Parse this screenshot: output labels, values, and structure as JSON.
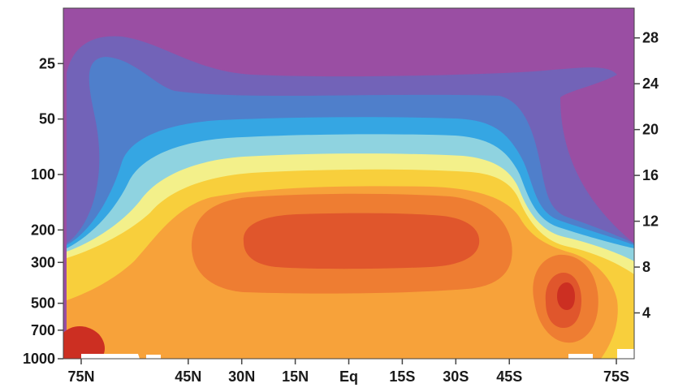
{
  "chart_data": {
    "type": "heatmap",
    "title": "",
    "xlabel": "",
    "ylabel": "",
    "y2label": "",
    "x_ticks": [
      "75N",
      "45N",
      "30N",
      "15N",
      "Eq",
      "15S",
      "30S",
      "45S",
      "75S"
    ],
    "x_tick_lats": [
      75,
      45,
      30,
      15,
      0,
      -15,
      -30,
      -45,
      -75
    ],
    "y_ticks": [
      "25",
      "50",
      "100",
      "200",
      "300",
      "500",
      "700",
      "1000"
    ],
    "y_tick_values": [
      25,
      50,
      100,
      200,
      300,
      500,
      700,
      1000
    ],
    "y_scale": "log (pressure, inverted)",
    "y2_ticks": [
      "28",
      "24",
      "20",
      "16",
      "12",
      "8",
      "4"
    ],
    "y2_tick_values": [
      28,
      24,
      20,
      16,
      12,
      8,
      4
    ],
    "y2_scale": "linear",
    "colors": {
      "background": "#9a4ea3",
      "band_1": "#7263b8",
      "band_2": "#4f7fcb",
      "band_3": "#35a6e3",
      "band_4": "#8fd3e0",
      "band_5": "#f3f08a",
      "band_6": "#f8cf3c",
      "band_7": "#f7a23a",
      "band_8": "#ee7d32",
      "band_9": "#e0562c",
      "band_10": "#cc2f22",
      "missing": "#ffffff"
    }
  }
}
